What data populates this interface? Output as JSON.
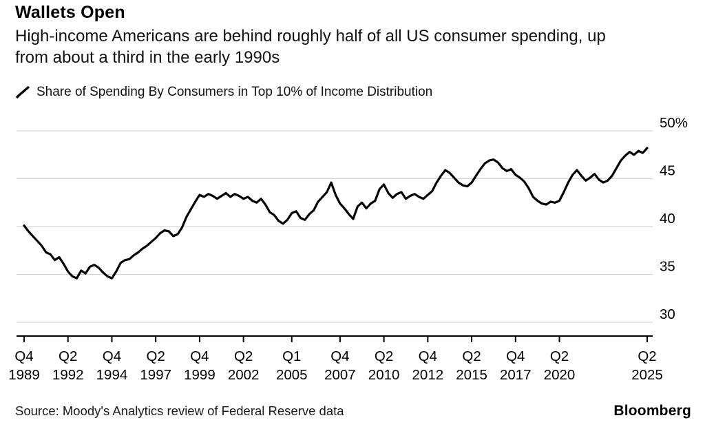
{
  "header": {
    "title": "Wallets Open",
    "subtitle": "High-income Americans are behind roughly half of all US consumer spending, up from about a third in the early 1990s"
  },
  "legend": {
    "label": "Share of Spending By Consumers in Top 10% of Income Distribution",
    "marker": "diagonal-line-sample",
    "marker_color": "#000000"
  },
  "footer": {
    "source": "Source: Moody's Analytics review of Federal Reserve data",
    "brand": "Bloomberg"
  },
  "chart_data": {
    "type": "line",
    "title": "Wallets Open",
    "series_name": "Share of Spending By Consumers in Top 10% of Income Distribution",
    "frequency": "quarterly",
    "x_start": "Q4 1989",
    "x_end": "Q2 2025",
    "unit": "%",
    "line_color": "#000000",
    "grid_color": "#d6d6d6",
    "axis_color": "#000000",
    "grid": "horizontal",
    "legend_position": "top-left",
    "ylim": [
      28.4,
      50.6
    ],
    "yticks": [
      {
        "v": 50,
        "label": "50%"
      },
      {
        "v": 45,
        "label": "45"
      },
      {
        "v": 40,
        "label": "40"
      },
      {
        "v": 35,
        "label": "35"
      },
      {
        "v": 30,
        "label": "30"
      }
    ],
    "xticks": [
      {
        "i": 0,
        "q": "Q4",
        "year": "1989"
      },
      {
        "i": 10,
        "q": "Q2",
        "year": "1992"
      },
      {
        "i": 20,
        "q": "Q4",
        "year": "1994"
      },
      {
        "i": 30,
        "q": "Q2",
        "year": "1997"
      },
      {
        "i": 40,
        "q": "Q4",
        "year": "1999"
      },
      {
        "i": 50,
        "q": "Q2",
        "year": "2002"
      },
      {
        "i": 61,
        "q": "Q1",
        "year": "2005"
      },
      {
        "i": 72,
        "q": "Q4",
        "year": "2007"
      },
      {
        "i": 82,
        "q": "Q2",
        "year": "2010"
      },
      {
        "i": 92,
        "q": "Q4",
        "year": "2012"
      },
      {
        "i": 102,
        "q": "Q2",
        "year": "2015"
      },
      {
        "i": 112,
        "q": "Q4",
        "year": "2017"
      },
      {
        "i": 122,
        "q": "Q2",
        "year": "2020"
      },
      {
        "i": 142,
        "q": "Q2",
        "year": "2025"
      }
    ],
    "values": [
      40.1,
      39.5,
      39.0,
      38.5,
      38.0,
      37.3,
      37.1,
      36.5,
      36.8,
      36.1,
      35.3,
      34.8,
      34.6,
      35.4,
      35.1,
      35.8,
      36.0,
      35.7,
      35.2,
      34.8,
      34.6,
      35.3,
      36.2,
      36.5,
      36.6,
      37.0,
      37.3,
      37.7,
      38.0,
      38.4,
      38.8,
      39.3,
      39.6,
      39.5,
      39.0,
      39.2,
      39.9,
      41.0,
      41.8,
      42.6,
      43.3,
      43.1,
      43.4,
      43.2,
      42.9,
      43.2,
      43.5,
      43.1,
      43.4,
      43.2,
      42.9,
      43.1,
      42.7,
      42.5,
      42.9,
      42.3,
      41.5,
      41.2,
      40.6,
      40.3,
      40.7,
      41.4,
      41.6,
      40.9,
      40.7,
      41.3,
      41.7,
      42.6,
      43.1,
      43.6,
      44.6,
      43.3,
      42.4,
      41.9,
      41.3,
      40.8,
      42.1,
      42.5,
      41.9,
      42.4,
      42.7,
      43.9,
      44.4,
      43.5,
      43.0,
      43.4,
      43.6,
      42.9,
      43.2,
      43.4,
      43.1,
      42.9,
      43.3,
      43.7,
      44.6,
      45.3,
      45.9,
      45.6,
      45.1,
      44.6,
      44.3,
      44.2,
      44.6,
      45.3,
      46.0,
      46.6,
      46.9,
      47.0,
      46.7,
      46.1,
      45.8,
      46.0,
      45.4,
      45.1,
      44.7,
      44.0,
      43.1,
      42.7,
      42.4,
      42.3,
      42.6,
      42.5,
      42.7,
      43.6,
      44.6,
      45.4,
      45.9,
      45.3,
      44.8,
      45.1,
      45.5,
      44.9,
      44.6,
      44.8,
      45.3,
      46.1,
      46.9,
      47.4,
      47.8,
      47.5,
      47.9,
      47.7,
      48.2
    ]
  }
}
